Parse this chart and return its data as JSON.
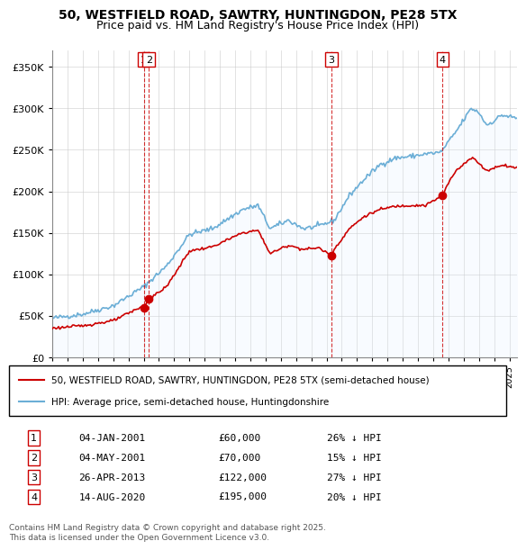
{
  "title_line1": "50, WESTFIELD ROAD, SAWTRY, HUNTINGDON, PE28 5TX",
  "title_line2": "Price paid vs. HM Land Registry's House Price Index (HPI)",
  "legend_line1": "50, WESTFIELD ROAD, SAWTRY, HUNTINGDON, PE28 5TX (semi-detached house)",
  "legend_line2": "HPI: Average price, semi-detached house, Huntingdonshire",
  "transactions": [
    {
      "num": 1,
      "date": "04-JAN-2001",
      "price": 60000,
      "pct": "26% ↓ HPI",
      "date_decimal": 2001.01
    },
    {
      "num": 2,
      "date": "04-MAY-2001",
      "price": 70000,
      "pct": "15% ↓ HPI",
      "date_decimal": 2001.34
    },
    {
      "num": 3,
      "date": "26-APR-2013",
      "price": 122000,
      "pct": "27% ↓ HPI",
      "date_decimal": 2013.32
    },
    {
      "num": 4,
      "date": "14-AUG-2020",
      "price": 195000,
      "pct": "20% ↓ HPI",
      "date_decimal": 2020.62
    }
  ],
  "footer": "Contains HM Land Registry data © Crown copyright and database right 2025.\nThis data is licensed under the Open Government Licence v3.0.",
  "hpi_color": "#6baed6",
  "hpi_fill_color": "#ddeeff",
  "price_color": "#cc0000",
  "marker_color": "#cc0000",
  "dashed_line_color": "#cc0000",
  "label_box_color": "#cc0000",
  "background_color": "#ffffff",
  "grid_color": "#cccccc",
  "ylim": [
    0,
    370000
  ],
  "xlim_start": 1995.0,
  "xlim_end": 2025.5
}
